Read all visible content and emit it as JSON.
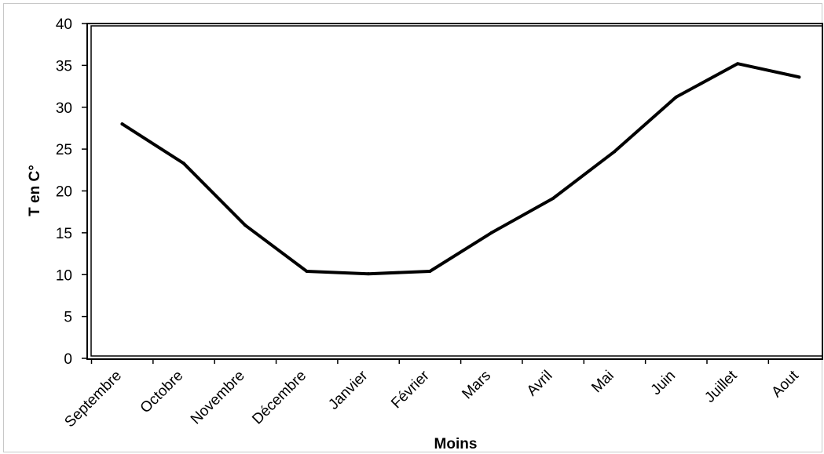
{
  "chart_data": {
    "type": "line",
    "categories": [
      "Septembre",
      "Octobre",
      "Novembre",
      "Décembre",
      "Janvier",
      "Février",
      "Mars",
      "Avril",
      "Mai",
      "Juin",
      "Juillet",
      "Aout"
    ],
    "series": [
      {
        "values": [
          28.0,
          23.3,
          15.9,
          10.4,
          10.1,
          10.4,
          15.0,
          19.1,
          24.7,
          31.2,
          35.2,
          33.6
        ]
      }
    ],
    "title": "",
    "xlabel": "Moins",
    "ylabel": "T en C°",
    "ylim": [
      0,
      40
    ],
    "yticks": [
      "0",
      "5",
      "10",
      "15",
      "20",
      "25",
      "30",
      "35",
      "40"
    ],
    "grid": false,
    "legend": "none",
    "colors": {
      "line": "#000000",
      "axis": "#000000",
      "frame": "#c8c8c8"
    }
  }
}
